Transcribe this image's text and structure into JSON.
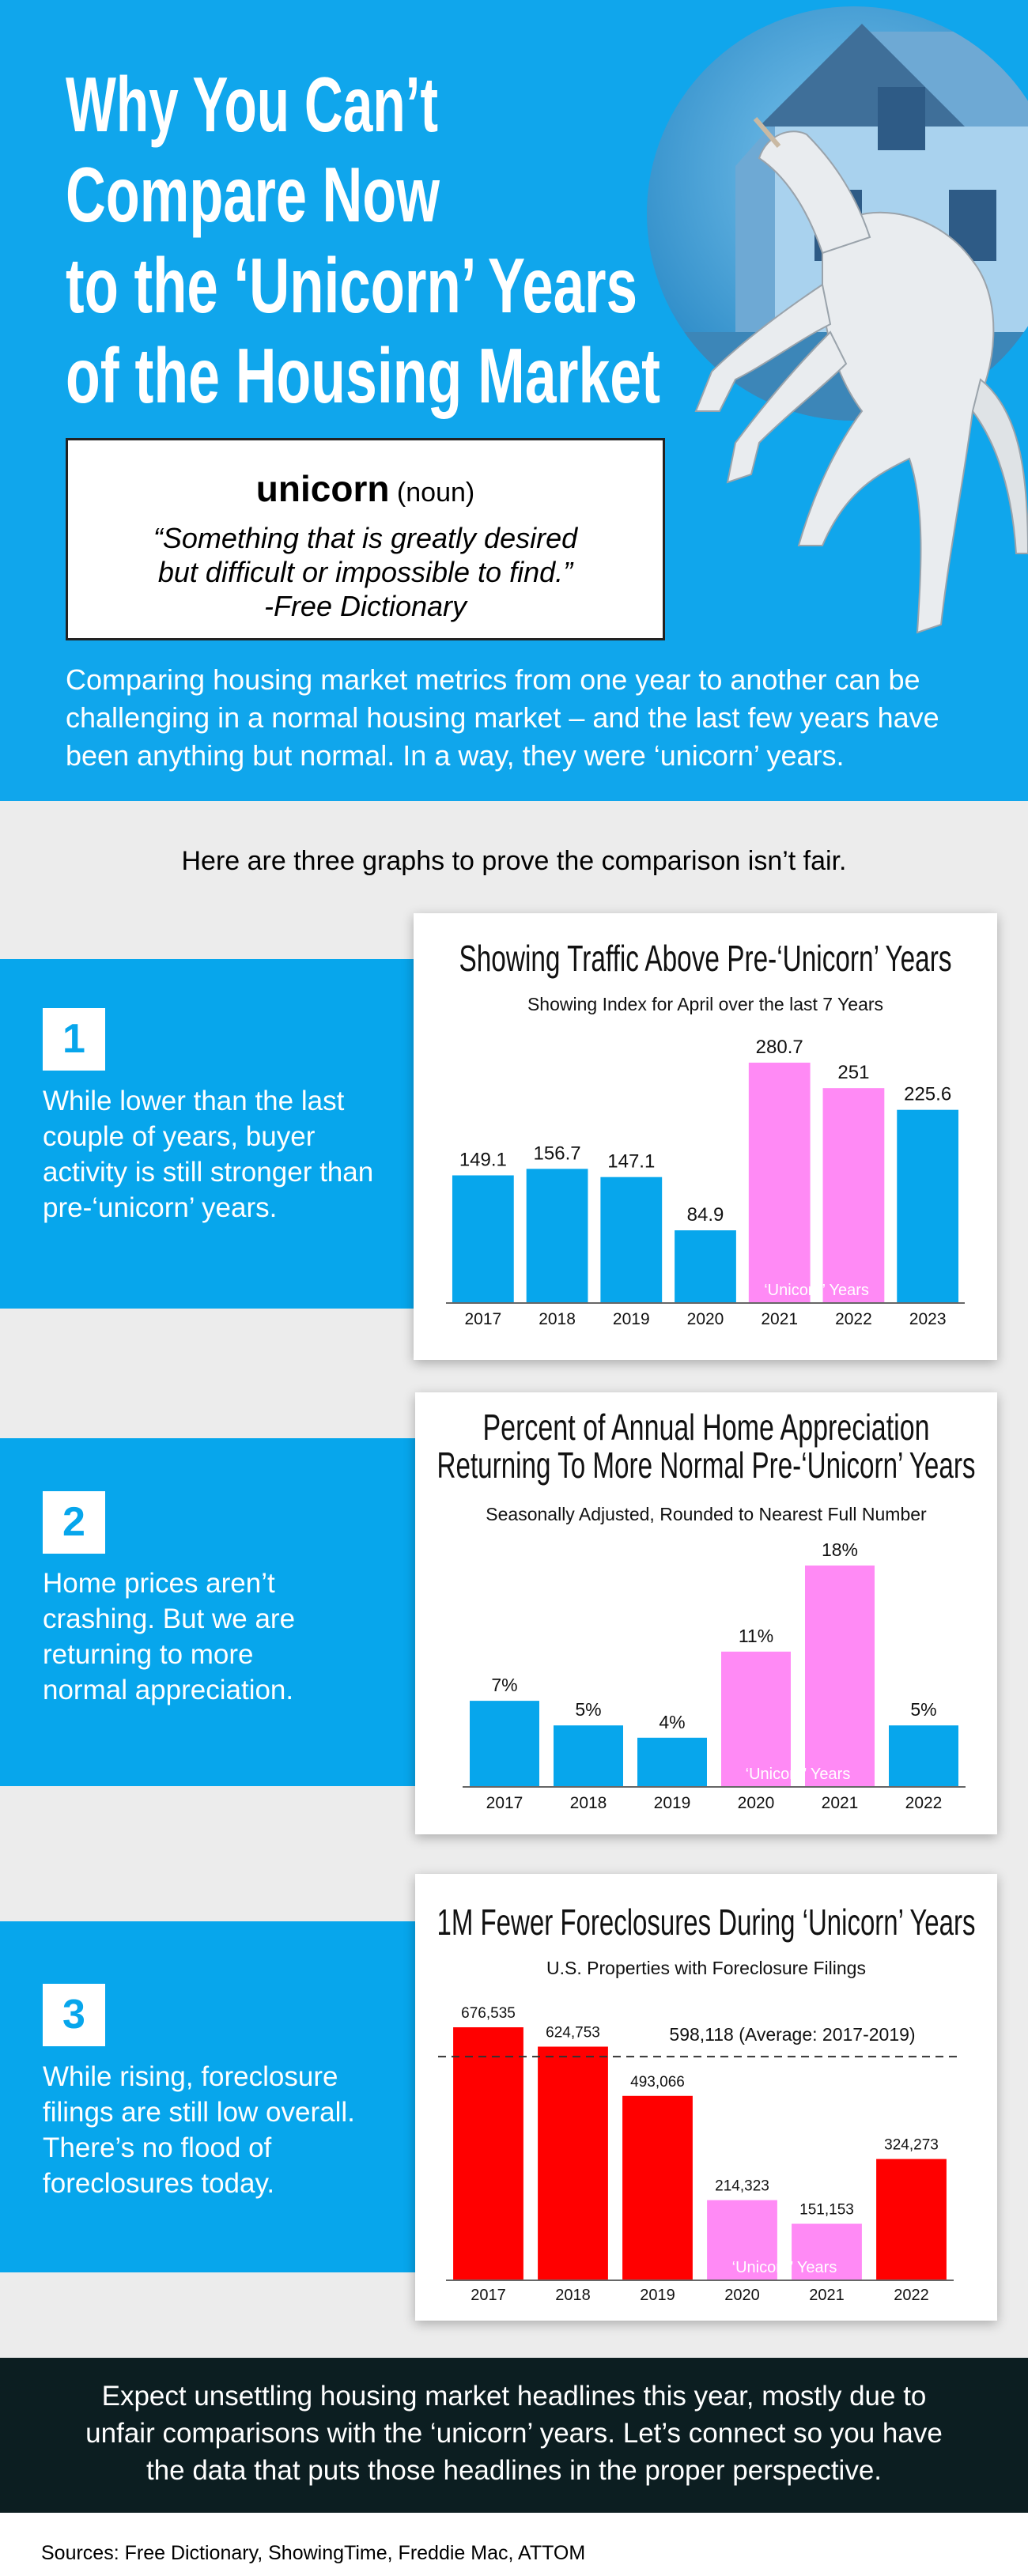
{
  "header": {
    "title": [
      "Why You Can’t",
      "Compare Now",
      "to the ‘Unicorn’ Years",
      "of the Housing Market"
    ]
  },
  "definition": {
    "word": "unicorn",
    "part_of_speech": "(noun)",
    "quote": "“Something that is greatly desired but difficult or impossible to find.”",
    "source": "-Free Dictionary"
  },
  "intro": "Comparing housing market metrics from one year to another can be challenging in a normal housing market – and the last few years have been anything but normal. In a way, they were ‘unicorn’ years.",
  "lead": "Here are three graphs to prove the comparison isn’t fair.",
  "sections": [
    {
      "number": "1",
      "text": "While lower than the last couple of years, buyer activity is still stronger than pre-‘unicorn’ years."
    },
    {
      "number": "2",
      "text": "Home prices aren’t crashing. But we are returning to more normal appreciation."
    },
    {
      "number": "3",
      "text": "While rising, foreclosure filings are still low overall. There’s no flood of foreclosures today."
    }
  ],
  "chart_data": [
    {
      "type": "bar",
      "title": [
        "Showing Traffic Above Pre-‘Unicorn’ Years"
      ],
      "subtitle": "Showing Index for April over the last 7 Years",
      "categories": [
        "2017",
        "2018",
        "2019",
        "2020",
        "2021",
        "2022",
        "2023"
      ],
      "values": [
        149.1,
        156.7,
        147.1,
        84.9,
        280.7,
        251,
        225.6
      ],
      "colors": [
        "#07a6ec",
        "#07a6ec",
        "#07a6ec",
        "#07a6ec",
        "#ff8af5",
        "#ff8af5",
        "#07a6ec"
      ],
      "annotation": {
        "text": "‘Unicorn’ Years",
        "from": "2021",
        "to": "2022"
      }
    },
    {
      "type": "bar",
      "title": [
        "Percent of Annual Home Appreciation",
        "Returning To More Normal Pre-‘Unicorn’ Years"
      ],
      "subtitle": "Seasonally Adjusted, Rounded to Nearest Full Number",
      "categories": [
        "2017",
        "2018",
        "2019",
        "2020",
        "2021",
        "2022"
      ],
      "values": [
        7,
        5,
        4,
        11,
        18,
        5
      ],
      "value_labels": [
        "7%",
        "5%",
        "4%",
        "11%",
        "18%",
        "5%"
      ],
      "colors": [
        "#07a6ec",
        "#07a6ec",
        "#07a6ec",
        "#ff8af5",
        "#ff8af5",
        "#07a6ec"
      ],
      "annotation": {
        "text": "‘Unicorn’ Years",
        "from": "2020",
        "to": "2021"
      }
    },
    {
      "type": "bar",
      "title": [
        "1M Fewer Foreclosures During ‘Unicorn’ Years"
      ],
      "subtitle": "U.S. Properties with Foreclosure Filings",
      "categories": [
        "2017",
        "2018",
        "2019",
        "2020",
        "2021",
        "2022"
      ],
      "values": [
        676535,
        624753,
        493066,
        214323,
        151153,
        324273
      ],
      "value_labels": [
        "676,535",
        "624,753",
        "493,066",
        "214,323",
        "151,153",
        "324,273"
      ],
      "colors": [
        "#ff0000",
        "#ff0000",
        "#ff0000",
        "#ff8af5",
        "#ff8af5",
        "#ff0000"
      ],
      "annotation": {
        "text": "‘Unicorn’ Years",
        "from": "2020",
        "to": "2021"
      },
      "reference_line": {
        "value": 598118,
        "label": "598,118 (Average: 2017-2019)"
      }
    }
  ],
  "closing": "Expect unsettling housing market headlines this year, mostly due to unfair comparisons with the ‘unicorn’ years. Let’s connect so you have the data that puts those headlines in the proper perspective.",
  "sources": "Sources: Free Dictionary, ShowingTime, Freddie Mac, ATTOM"
}
